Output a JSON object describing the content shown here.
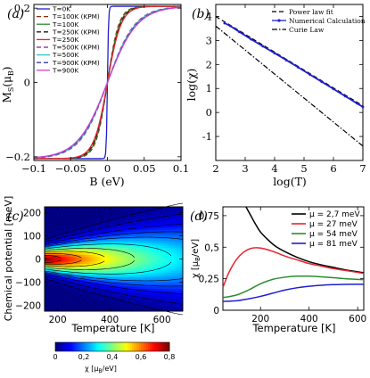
{
  "panels": [
    {
      "id": "a",
      "label": "(a)",
      "type": "line",
      "xlabel": "B (eV)",
      "ylabel": "M",
      "ylabel_sub": "S",
      "ylabel_unit": "(μ",
      "ylabel_unit_sub": "B",
      "ylabel_unit_close": ")",
      "xlim": [
        -0.1,
        0.1
      ],
      "ylim": [
        -0.21,
        0.21
      ],
      "xticks": [
        -0.1,
        -0.05,
        0,
        0.05,
        0.1
      ],
      "xtick_labels": [
        "−0.1",
        "−0.05",
        "0",
        "0.05",
        "0.1"
      ],
      "yticks": [
        -0.2,
        0,
        0.2
      ],
      "ytick_labels": [
        "−0.2",
        "0",
        "0.2"
      ],
      "legend_position": "upper-left",
      "series": [
        {
          "name": "T=0K",
          "color": "#1f1fd0",
          "dash": "solid",
          "tau": 0.0015
        },
        {
          "name": "T=100K (KPM)",
          "color": "#8b2b10",
          "dash": "dashed",
          "tau": 0.0155
        },
        {
          "name": "T=100K",
          "color": "#2e8b2e",
          "dash": "solid",
          "tau": 0.0165
        },
        {
          "name": "T=250K (KPM)",
          "color": "#1a1a1a",
          "dash": "dashed",
          "tau": 0.0175
        },
        {
          "name": "T=250K",
          "color": "#e8232e",
          "dash": "solid",
          "tau": 0.0185
        },
        {
          "name": "T=500K (KPM)",
          "color": "#8b1c8b",
          "dash": "dashed",
          "tau": 0.0375
        },
        {
          "name": "T=500K",
          "color": "#2ec4c4",
          "dash": "solid",
          "tau": 0.0385
        },
        {
          "name": "T=900K (KPM)",
          "color": "#2e3fb0",
          "dash": "dashed",
          "tau": 0.0395
        },
        {
          "name": "T=900K",
          "color": "#d040d0",
          "dash": "solid",
          "tau": 0.0405
        }
      ]
    },
    {
      "id": "b",
      "label": "(b)",
      "type": "line",
      "xlabel": "log(T)",
      "ylabel": "log(χ)",
      "xlim": [
        2,
        7
      ],
      "ylim": [
        -2,
        4.5
      ],
      "xticks": [
        2,
        3,
        4,
        5,
        6,
        7
      ],
      "yticks": [
        -1,
        0,
        1,
        2,
        3,
        4
      ],
      "legend_position": "upper-right",
      "series": [
        {
          "name": "Power law fit",
          "color": "#000000",
          "dash": "dashed",
          "x": [
            2,
            7
          ],
          "y": [
            4.0,
            0.28
          ]
        },
        {
          "name": "Numerical Calculation",
          "color": "#1f1fd0",
          "dash": "solid",
          "marker": true,
          "x": [
            2.3,
            2.5,
            2.8,
            3.2,
            3.6,
            4.0,
            4.4,
            4.8,
            5.2,
            5.6,
            6.0,
            6.4,
            6.8,
            7.0
          ],
          "y": [
            3.72,
            3.6,
            3.36,
            3.05,
            2.76,
            2.47,
            2.18,
            1.88,
            1.58,
            1.28,
            0.98,
            0.68,
            0.38,
            0.23
          ]
        },
        {
          "name": "Curie Law",
          "color": "#000000",
          "dash": "dashdot",
          "x": [
            2,
            7
          ],
          "y": [
            3.6,
            -1.4
          ]
        }
      ]
    },
    {
      "id": "c",
      "label": "(c)",
      "type": "heatmap",
      "xlabel": "Temperature [K]",
      "ylabel": "Chemical potential [meV]",
      "xlim": [
        150,
        680
      ],
      "ylim": [
        -225,
        225
      ],
      "xticks": [
        200,
        400,
        600
      ],
      "yticks": [
        -200,
        -100,
        0,
        100,
        200
      ],
      "ytick_labels": [
        "−200",
        "−100",
        "0",
        "100",
        "200"
      ],
      "colorbar": {
        "label": "χ [μ",
        "label_sub": "B",
        "label_unit": "/eV]",
        "range": [
          0,
          0.8
        ],
        "ticks": [
          0,
          0.2,
          0.4,
          0.6,
          0.8
        ],
        "tick_labels": [
          "0",
          "0,2",
          "0,4",
          "0,6",
          "0,8"
        ],
        "colormap": "jet"
      }
    },
    {
      "id": "d",
      "label": "(d)",
      "type": "line",
      "xlabel": "Temperature [K]",
      "ylabel": "χ [μ",
      "ylabel_sub": "B",
      "ylabel_unit": "/eV]",
      "xlim": [
        45,
        625
      ],
      "ylim": [
        0,
        0.82
      ],
      "xticks": [
        200,
        400,
        600
      ],
      "yticks": [
        0,
        0.25,
        0.5,
        0.75
      ],
      "ytick_labels": [
        "0",
        "0,25",
        "0,5",
        "0,75"
      ],
      "legend_position": "upper-right",
      "series": [
        {
          "name": "μ = 2,7 meV",
          "color": "#000000",
          "x": [
            140,
            160,
            180,
            200,
            230,
            260,
            300,
            350,
            400,
            450,
            500,
            550,
            600,
            625
          ],
          "y": [
            0.82,
            0.75,
            0.68,
            0.62,
            0.56,
            0.51,
            0.465,
            0.42,
            0.385,
            0.36,
            0.34,
            0.32,
            0.305,
            0.298
          ]
        },
        {
          "name": "μ = 27 meV",
          "color": "#e8232e",
          "x": [
            45,
            70,
            100,
            130,
            160,
            190,
            220,
            260,
            300,
            350,
            400,
            450,
            500,
            550,
            600,
            625
          ],
          "y": [
            0.18,
            0.3,
            0.4,
            0.46,
            0.49,
            0.495,
            0.485,
            0.46,
            0.43,
            0.4,
            0.37,
            0.35,
            0.33,
            0.315,
            0.3,
            0.292
          ]
        },
        {
          "name": "μ = 54 meV",
          "color": "#2e8b2e",
          "x": [
            45,
            100,
            150,
            200,
            250,
            300,
            350,
            400,
            450,
            500,
            550,
            600,
            625
          ],
          "y": [
            0.1,
            0.12,
            0.16,
            0.21,
            0.245,
            0.262,
            0.27,
            0.27,
            0.265,
            0.258,
            0.25,
            0.245,
            0.242
          ]
        },
        {
          "name": "μ = 81 meV",
          "color": "#1f1fd0",
          "x": [
            45,
            100,
            150,
            200,
            250,
            300,
            350,
            400,
            450,
            500,
            550,
            600,
            625
          ],
          "y": [
            0.07,
            0.075,
            0.09,
            0.11,
            0.135,
            0.16,
            0.178,
            0.19,
            0.198,
            0.203,
            0.205,
            0.206,
            0.206
          ]
        }
      ]
    }
  ]
}
